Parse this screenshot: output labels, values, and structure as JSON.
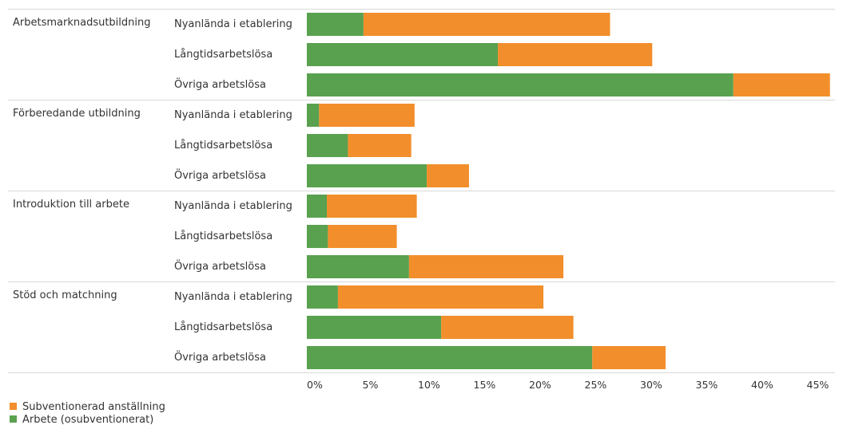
{
  "chart_data": {
    "type": "bar",
    "orientation": "horizontal",
    "stacked": true,
    "x_unit": "%",
    "xlim": [
      0,
      47
    ],
    "x_ticks": [
      0,
      5,
      10,
      15,
      20,
      25,
      30,
      35,
      40,
      45
    ],
    "x_tick_labels": [
      "0%",
      "5%",
      "10%",
      "15%",
      "20%",
      "25%",
      "30%",
      "35%",
      "40%",
      "45%"
    ],
    "legend_position": "bottom-left",
    "series": [
      {
        "name": "Subventionerad anställning",
        "color": "#F28E2B"
      },
      {
        "name": "Arbete (osubventionerat)",
        "color": "#59A14F"
      }
    ],
    "groups": [
      {
        "label": "Arbetsmarknadsutbildning",
        "rows": [
          {
            "label": "Nyanlända i etablering",
            "arbete": 5.1,
            "subventionerad": 22.2
          },
          {
            "label": "Långtidsarbetslösa",
            "arbete": 17.2,
            "subventionerad": 13.9
          },
          {
            "label": "Övriga arbetslösa",
            "arbete": 38.4,
            "subventionerad": 8.7
          }
        ]
      },
      {
        "label": "Förberedande utbildning",
        "rows": [
          {
            "label": "Nyanlända i etablering",
            "arbete": 1.1,
            "subventionerad": 8.6
          },
          {
            "label": "Långtidsarbetslösa",
            "arbete": 3.7,
            "subventionerad": 5.7
          },
          {
            "label": "Övriga arbetslösa",
            "arbete": 10.8,
            "subventionerad": 3.8
          }
        ]
      },
      {
        "label": "Introduktion till arbete",
        "rows": [
          {
            "label": "Nyanlända i etablering",
            "arbete": 1.8,
            "subventionerad": 8.1
          },
          {
            "label": "Långtidsarbetslösa",
            "arbete": 1.9,
            "subventionerad": 6.2
          },
          {
            "label": "Övriga arbetslösa",
            "arbete": 9.2,
            "subventionerad": 13.9
          }
        ]
      },
      {
        "label": "Stöd och matchning",
        "rows": [
          {
            "label": "Nyanlända i etablering",
            "arbete": 2.8,
            "subventionerad": 18.5
          },
          {
            "label": "Långtidsarbetslösa",
            "arbete": 12.1,
            "subventionerad": 11.9
          },
          {
            "label": "Övriga arbetslösa",
            "arbete": 25.7,
            "subventionerad": 6.6
          }
        ]
      }
    ]
  }
}
